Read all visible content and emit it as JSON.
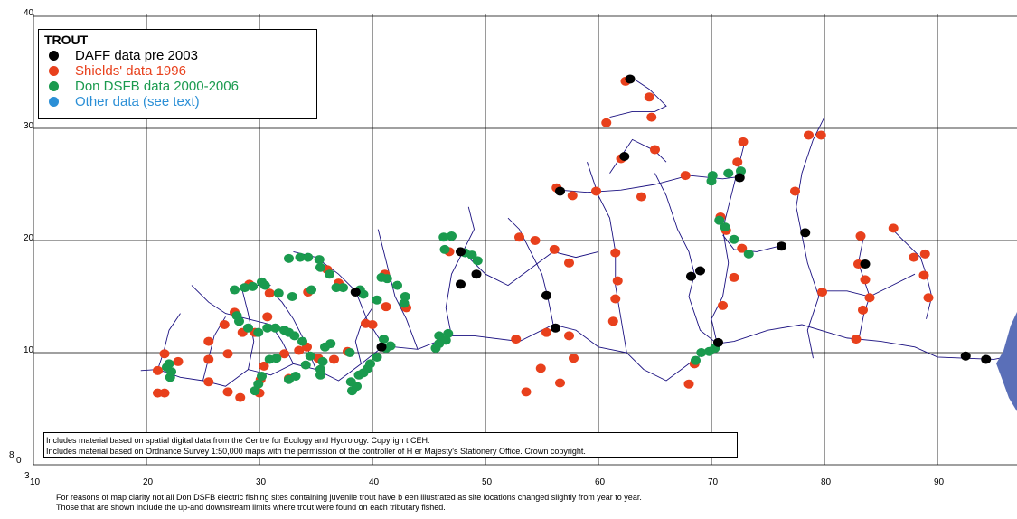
{
  "legend": {
    "title": "TROUT",
    "items": [
      {
        "label": "DAFF data pre 2003",
        "color": "#000000",
        "text_color": "#000000"
      },
      {
        "label": "Shields' data 1996",
        "color": "#e8401c",
        "text_color": "#e8401c"
      },
      {
        "label": "Don DSFB data 2000-2006",
        "color": "#1a9a4e",
        "text_color": "#1a9a4e"
      },
      {
        "label": "Other data (see text)",
        "color": "#2b8fd6",
        "text_color": "#2b8fd6"
      }
    ]
  },
  "grid": {
    "x_ticks": [
      "10",
      "20",
      "30",
      "40",
      "50",
      "60",
      "70",
      "80",
      "90"
    ],
    "y_ticks": [
      "40",
      "30",
      "20",
      "10",
      "0"
    ],
    "corner_x": "3",
    "corner_y": "8"
  },
  "credits": {
    "line1": "Includes material based on spatial digital data from the Centre for Ecology and Hydrology. Copyrigh        t CEH.",
    "line2": "Includes material based on Ordnance Survey 1:50,000 maps with the permission of the controller of H        er Majesty's Stationery Office. Crown copyright."
  },
  "footnote": {
    "line1": "For reasons of map clarity not all Don DSFB electric fishing sites containing juvenile trout have b        een illustrated as site locations changed slightly from year to year.",
    "line2": "Those that are shown include the up-and downstream limits where trout were found on each tributary            fished."
  },
  "colors": {
    "river": "#1a1080",
    "estuary": "#5a6fb8",
    "daff": "#000000",
    "shields": "#e8401c",
    "dsfb": "#1a9a4e"
  },
  "map_data": {
    "units": "km grid",
    "rivers": [
      [
        [
          92.5,
          9.5
        ],
        [
          90,
          9.6
        ],
        [
          88,
          10.5
        ],
        [
          85,
          11
        ],
        [
          82,
          11.3
        ],
        [
          78,
          12.5
        ],
        [
          75,
          12
        ],
        [
          72,
          11
        ],
        [
          70.5,
          10.8
        ],
        [
          68,
          9
        ],
        [
          66,
          7.5
        ],
        [
          64,
          8.5
        ],
        [
          62.5,
          10
        ],
        [
          60,
          10.5
        ],
        [
          58,
          12
        ],
        [
          56,
          12.5
        ],
        [
          53,
          11
        ],
        [
          49,
          11.5
        ],
        [
          47,
          11.5
        ],
        [
          44,
          10.3
        ],
        [
          41,
          10.6
        ],
        [
          39,
          9
        ],
        [
          37,
          7.5
        ],
        [
          35,
          8.5
        ],
        [
          33,
          9
        ],
        [
          31,
          8
        ],
        [
          29,
          8.5
        ],
        [
          27,
          7
        ],
        [
          25,
          7.5
        ],
        [
          23,
          7.8
        ],
        [
          21,
          8.5
        ],
        [
          19.5,
          8.4
        ]
      ],
      [
        [
          92.5,
          9.5
        ],
        [
          95,
          9.4
        ],
        [
          96,
          9.6
        ]
      ],
      [
        [
          70.5,
          10.8
        ],
        [
          70,
          13
        ],
        [
          71,
          15
        ],
        [
          71.5,
          18
        ],
        [
          71,
          21
        ],
        [
          71.5,
          23
        ],
        [
          72,
          25
        ],
        [
          72.5,
          27
        ],
        [
          73,
          29
        ]
      ],
      [
        [
          70.5,
          10.8
        ],
        [
          69,
          12
        ],
        [
          68,
          15
        ],
        [
          68.5,
          17
        ],
        [
          68,
          19
        ],
        [
          67,
          21
        ],
        [
          66,
          24
        ],
        [
          65,
          26
        ]
      ],
      [
        [
          62.5,
          10
        ],
        [
          62,
          13
        ],
        [
          61.5,
          16
        ],
        [
          61.5,
          19
        ],
        [
          61,
          22
        ],
        [
          60,
          24
        ],
        [
          59,
          27
        ]
      ],
      [
        [
          56,
          12.5
        ],
        [
          55.5,
          15
        ],
        [
          55,
          17
        ],
        [
          54,
          19
        ],
        [
          53,
          21
        ],
        [
          52,
          22
        ]
      ],
      [
        [
          47,
          11.5
        ],
        [
          46.5,
          14
        ],
        [
          47,
          17
        ],
        [
          48,
          19
        ],
        [
          49,
          21
        ],
        [
          48.5,
          23
        ]
      ],
      [
        [
          44,
          10.3
        ],
        [
          43,
          13
        ],
        [
          42,
          15
        ],
        [
          41.5,
          17
        ],
        [
          41,
          19
        ],
        [
          40.5,
          21
        ]
      ],
      [
        [
          41,
          10.6
        ],
        [
          39.5,
          13
        ],
        [
          38.5,
          15.5
        ],
        [
          37,
          17
        ],
        [
          35,
          18.5
        ],
        [
          33,
          19
        ]
      ],
      [
        [
          33,
          9
        ],
        [
          32,
          11
        ],
        [
          31,
          12.5
        ],
        [
          29,
          13
        ],
        [
          27,
          13.5
        ],
        [
          25.5,
          14.5
        ],
        [
          24,
          16
        ]
      ],
      [
        [
          29,
          8.5
        ],
        [
          29.5,
          11
        ],
        [
          29,
          13.5
        ],
        [
          28.5,
          15.5
        ],
        [
          29.5,
          16
        ],
        [
          31,
          16
        ]
      ],
      [
        [
          48,
          19
        ],
        [
          50,
          17
        ],
        [
          52,
          16
        ],
        [
          54,
          17.5
        ],
        [
          56,
          19
        ],
        [
          58,
          18.5
        ],
        [
          60,
          19
        ]
      ],
      [
        [
          56.5,
          24.5
        ],
        [
          59,
          24.3
        ],
        [
          62,
          24.5
        ],
        [
          65,
          25
        ],
        [
          68,
          25.8
        ],
        [
          71,
          25.5
        ],
        [
          72.5,
          25.7
        ]
      ],
      [
        [
          61,
          26
        ],
        [
          62,
          27.5
        ],
        [
          63,
          29
        ],
        [
          65,
          28
        ],
        [
          66,
          27
        ]
      ],
      [
        [
          61,
          31
        ],
        [
          63,
          31.5
        ],
        [
          65,
          31.5
        ],
        [
          66,
          32
        ],
        [
          64.5,
          33.5
        ],
        [
          63,
          34.5
        ]
      ],
      [
        [
          79,
          9.5
        ],
        [
          78.5,
          12
        ],
        [
          79.5,
          15
        ],
        [
          78.5,
          18
        ],
        [
          78,
          20.5
        ],
        [
          77.5,
          23
        ],
        [
          78,
          26
        ],
        [
          79,
          29
        ],
        [
          80,
          31
        ]
      ],
      [
        [
          76,
          19.5
        ],
        [
          74,
          19
        ],
        [
          72,
          19.2
        ],
        [
          71,
          20.5
        ]
      ],
      [
        [
          83,
          11
        ],
        [
          83.5,
          13.5
        ],
        [
          84,
          15
        ],
        [
          83,
          18
        ],
        [
          83.5,
          20.5
        ]
      ],
      [
        [
          86,
          21
        ],
        [
          87.5,
          19.5
        ],
        [
          88.5,
          18.5
        ],
        [
          89,
          17
        ],
        [
          89.5,
          15
        ],
        [
          89,
          13
        ]
      ],
      [
        [
          80,
          15.5
        ],
        [
          82,
          15.5
        ],
        [
          84,
          15
        ],
        [
          86,
          16
        ],
        [
          88,
          17
        ]
      ],
      [
        [
          35,
          8.5
        ],
        [
          34,
          11
        ],
        [
          33,
          13
        ],
        [
          32,
          14.5
        ],
        [
          31,
          15.5
        ]
      ],
      [
        [
          39,
          9
        ],
        [
          38.5,
          11
        ],
        [
          39,
          12.5
        ],
        [
          40,
          14
        ]
      ],
      [
        [
          25,
          7.5
        ],
        [
          25.5,
          9.5
        ],
        [
          26,
          11.5
        ],
        [
          27,
          13.2
        ]
      ],
      [
        [
          21,
          8.5
        ],
        [
          21.5,
          10
        ],
        [
          22,
          12
        ],
        [
          23,
          13.5
        ]
      ]
    ],
    "daff_sites": [
      [
        62.8,
        34.4
      ],
      [
        62.3,
        27.5
      ],
      [
        56.6,
        24.4
      ],
      [
        72.5,
        25.6
      ],
      [
        78.3,
        20.7
      ],
      [
        76.2,
        19.5
      ],
      [
        47.8,
        19
      ],
      [
        49.2,
        17
      ],
      [
        47.8,
        16.1
      ],
      [
        38.5,
        15.4
      ],
      [
        55.4,
        15.1
      ],
      [
        56.2,
        12.2
      ],
      [
        40.8,
        10.5
      ],
      [
        68.2,
        16.8
      ],
      [
        69,
        17.3
      ],
      [
        70.6,
        10.9
      ],
      [
        83.6,
        17.9
      ],
      [
        92.5,
        9.7
      ],
      [
        94.3,
        9.4
      ]
    ],
    "shields_sites": [
      [
        62.4,
        34.2
      ],
      [
        64.5,
        32.8
      ],
      [
        64.7,
        31
      ],
      [
        60.7,
        30.5
      ],
      [
        65,
        28.1
      ],
      [
        62,
        27.3
      ],
      [
        72.8,
        28.8
      ],
      [
        72.3,
        27
      ],
      [
        78.6,
        29.4
      ],
      [
        79.7,
        29.4
      ],
      [
        56.3,
        24.7
      ],
      [
        57.7,
        24
      ],
      [
        59.8,
        24.4
      ],
      [
        63.8,
        23.9
      ],
      [
        67.7,
        25.8
      ],
      [
        77.4,
        24.4
      ],
      [
        70.8,
        22.1
      ],
      [
        71.3,
        20.9
      ],
      [
        72.7,
        19.3
      ],
      [
        61.5,
        18.9
      ],
      [
        53,
        20.3
      ],
      [
        54.4,
        20
      ],
      [
        56.1,
        19.2
      ],
      [
        57.4,
        18
      ],
      [
        61.7,
        16.4
      ],
      [
        61.5,
        14.8
      ],
      [
        61.3,
        12.8
      ],
      [
        57.4,
        11.5
      ],
      [
        57.8,
        9.5
      ],
      [
        56.6,
        7.3
      ],
      [
        54.9,
        8.6
      ],
      [
        53.6,
        6.5
      ],
      [
        55.4,
        11.8
      ],
      [
        52.7,
        11.2
      ],
      [
        68,
        7.2
      ],
      [
        68.5,
        9
      ],
      [
        72,
        16.7
      ],
      [
        71,
        14.2
      ],
      [
        83.2,
        20.4
      ],
      [
        83,
        17.9
      ],
      [
        83.6,
        16.5
      ],
      [
        84,
        14.9
      ],
      [
        83.4,
        13.8
      ],
      [
        82.8,
        11.2
      ],
      [
        86.1,
        21.1
      ],
      [
        87.9,
        18.5
      ],
      [
        88.9,
        18.8
      ],
      [
        88.8,
        16.9
      ],
      [
        89.2,
        14.9
      ],
      [
        79.8,
        15.4
      ],
      [
        46.8,
        19
      ],
      [
        43,
        14
      ],
      [
        41.1,
        17
      ],
      [
        41.2,
        14.1
      ],
      [
        40,
        12.5
      ],
      [
        36,
        17.4
      ],
      [
        37,
        16.2
      ],
      [
        34.3,
        15.4
      ],
      [
        30.9,
        15.3
      ],
      [
        29.1,
        16.1
      ],
      [
        27.8,
        13.6
      ],
      [
        30.7,
        13.2
      ],
      [
        29.6,
        11.8
      ],
      [
        28.5,
        11.8
      ],
      [
        26.9,
        12.5
      ],
      [
        25.5,
        11
      ],
      [
        25.5,
        9.4
      ],
      [
        27.2,
        9.9
      ],
      [
        25.5,
        7.4
      ],
      [
        27.2,
        6.5
      ],
      [
        28.3,
        6
      ],
      [
        30.1,
        7.6
      ],
      [
        30.4,
        8.8
      ],
      [
        32.2,
        9.9
      ],
      [
        33.5,
        10.2
      ],
      [
        34.2,
        10.5
      ],
      [
        35.2,
        9.5
      ],
      [
        36.6,
        9.4
      ],
      [
        37.8,
        10.1
      ],
      [
        39.4,
        12.6
      ],
      [
        21.6,
        9.9
      ],
      [
        21,
        8.4
      ],
      [
        22.8,
        9.2
      ],
      [
        21.6,
        6.4
      ],
      [
        21,
        6.4
      ],
      [
        32.6,
        7.7
      ],
      [
        30,
        6.4
      ]
    ],
    "dsfb_sites": [
      [
        46.3,
        20.3
      ],
      [
        47,
        20.4
      ],
      [
        46.4,
        19.2
      ],
      [
        48.2,
        18.9
      ],
      [
        49.3,
        18.2
      ],
      [
        48.8,
        18.7
      ],
      [
        42.9,
        15
      ],
      [
        42.8,
        14.4
      ],
      [
        42.2,
        16
      ],
      [
        41.3,
        16.6
      ],
      [
        40.8,
        16.7
      ],
      [
        40.4,
        14.7
      ],
      [
        39.2,
        15.2
      ],
      [
        38.9,
        15.6
      ],
      [
        36.2,
        17
      ],
      [
        35.4,
        17.6
      ],
      [
        35.3,
        18.3
      ],
      [
        34.3,
        18.5
      ],
      [
        33.6,
        18.5
      ],
      [
        32.6,
        18.4
      ],
      [
        34.6,
        15.6
      ],
      [
        37.4,
        15.8
      ],
      [
        36.8,
        15.8
      ],
      [
        32.9,
        15
      ],
      [
        31.7,
        15.3
      ],
      [
        30.5,
        16
      ],
      [
        30.2,
        16.3
      ],
      [
        29.4,
        15.9
      ],
      [
        28.7,
        15.8
      ],
      [
        27.8,
        15.6
      ],
      [
        28,
        13.3
      ],
      [
        28.2,
        12.8
      ],
      [
        29,
        12.2
      ],
      [
        29.9,
        11.8
      ],
      [
        30.7,
        12.2
      ],
      [
        31.4,
        12.2
      ],
      [
        32.2,
        12
      ],
      [
        32.6,
        11.8
      ],
      [
        33.1,
        11.5
      ],
      [
        33.8,
        11
      ],
      [
        31.5,
        9.5
      ],
      [
        30.9,
        9.4
      ],
      [
        30.2,
        7.9
      ],
      [
        29.9,
        7.2
      ],
      [
        29.6,
        6.6
      ],
      [
        32.6,
        7.6
      ],
      [
        33.2,
        7.9
      ],
      [
        34.1,
        8.9
      ],
      [
        34.5,
        9.7
      ],
      [
        35.8,
        10.5
      ],
      [
        35.6,
        9.2
      ],
      [
        35.4,
        8.5
      ],
      [
        35.4,
        8
      ],
      [
        36.3,
        10.8
      ],
      [
        38,
        10
      ],
      [
        38.8,
        8
      ],
      [
        39.2,
        8.2
      ],
      [
        38.1,
        7.4
      ],
      [
        38.2,
        6.6
      ],
      [
        38.6,
        7
      ],
      [
        39.8,
        9
      ],
      [
        39.6,
        8.6
      ],
      [
        40.4,
        9.6
      ],
      [
        41.2,
        10.4
      ],
      [
        41.6,
        10.6
      ],
      [
        41,
        11.2
      ],
      [
        45.6,
        10.4
      ],
      [
        45.9,
        10.8
      ],
      [
        45.9,
        11.5
      ],
      [
        46.7,
        11.7
      ],
      [
        46.5,
        11.1
      ],
      [
        22,
        9
      ],
      [
        22.2,
        8.3
      ],
      [
        22.1,
        7.8
      ],
      [
        21.8,
        8.7
      ],
      [
        70.7,
        21.8
      ],
      [
        71.2,
        21.2
      ],
      [
        72,
        20.1
      ],
      [
        73.3,
        18.8
      ],
      [
        71.5,
        26
      ],
      [
        70.1,
        25.8
      ],
      [
        70,
        25.3
      ],
      [
        72.6,
        26.2
      ],
      [
        69.8,
        10.1
      ],
      [
        70.3,
        10.4
      ],
      [
        68.6,
        9.3
      ],
      [
        69.1,
        10
      ]
    ]
  }
}
